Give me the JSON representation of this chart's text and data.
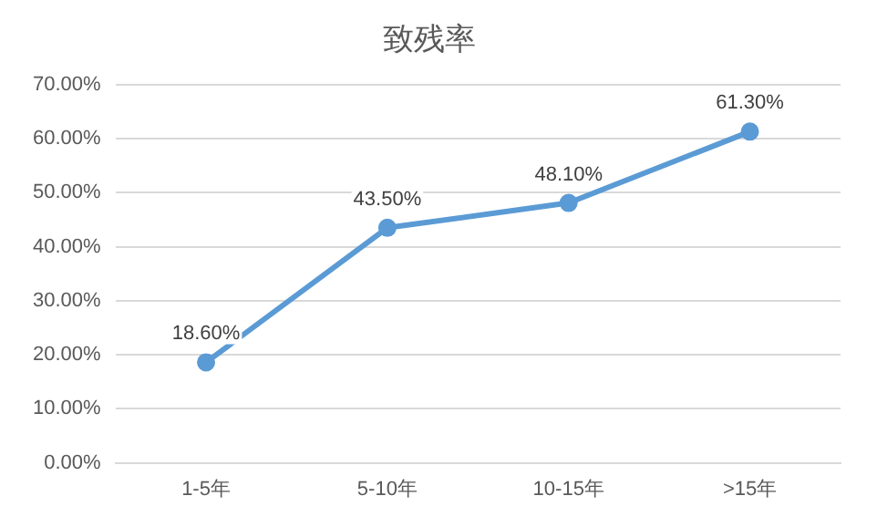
{
  "chart_data": {
    "type": "line",
    "title": "致残率",
    "categories": [
      "1-5年",
      "5-10年",
      "10-15年",
      ">15年"
    ],
    "series": [
      {
        "color": "#5b9bd5",
        "values": [
          18.6,
          43.5,
          48.1,
          61.3
        ],
        "value_labels": [
          "18.60%",
          "43.50%",
          "48.10%",
          "61.30%"
        ]
      }
    ],
    "ylim": [
      0,
      70
    ],
    "yticks": [
      {
        "value": 0,
        "label": "0.00%"
      },
      {
        "value": 10,
        "label": "10.00%"
      },
      {
        "value": 20,
        "label": "20.00%"
      },
      {
        "value": 30,
        "label": "30.00%"
      },
      {
        "value": 40,
        "label": "40.00%"
      },
      {
        "value": 50,
        "label": "50.00%"
      },
      {
        "value": 60,
        "label": "60.00%"
      },
      {
        "value": 70,
        "label": "70.00%"
      }
    ],
    "grid": "y",
    "marker": "circle",
    "line_style": "solid",
    "legend": false
  }
}
